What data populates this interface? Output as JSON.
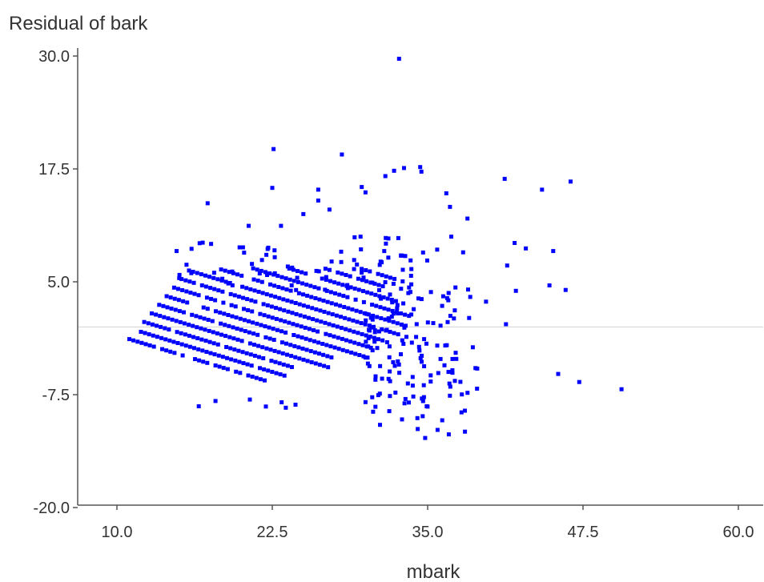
{
  "chart_data": {
    "type": "scatter",
    "title": "",
    "ylabel": "Residual of bark",
    "xlabel": "mbark",
    "xlim": [
      6.1,
      62.0
    ],
    "ylim": [
      -21.0,
      31.0
    ],
    "xticks": [
      10.0,
      22.5,
      35.0,
      47.5,
      60.0
    ],
    "yticks": [
      30.0,
      17.5,
      5.0,
      -7.5,
      -20.0
    ],
    "xtick_labels": [
      "10.0",
      "22.5",
      "35.0",
      "47.5",
      "60.0"
    ],
    "ytick_labels": [
      "30.0",
      "17.5",
      "5.0",
      "-7.5",
      "-20.0"
    ],
    "reference_line_y": 0,
    "grid": false,
    "legend": "none",
    "colors": {
      "points": "#0000ff",
      "axis": "#555555",
      "reference_line": "#d3d3d3"
    },
    "series": [
      {
        "points": [
          [
            32.7,
            29.7
          ],
          [
            22.6,
            19.7
          ],
          [
            28.1,
            19.1
          ],
          [
            33.1,
            17.6
          ],
          [
            34.4,
            17.7
          ],
          [
            34.5,
            17.2
          ],
          [
            32.3,
            17.3
          ],
          [
            31.6,
            16.7
          ],
          [
            41.2,
            16.4
          ],
          [
            46.5,
            16.1
          ],
          [
            22.5,
            15.4
          ],
          [
            29.7,
            15.5
          ],
          [
            44.2,
            15.2
          ],
          [
            26.2,
            15.2
          ],
          [
            30.0,
            14.9
          ],
          [
            36.5,
            14.8
          ],
          [
            26.2,
            14.0
          ],
          [
            17.3,
            13.7
          ],
          [
            36.8,
            13.3
          ],
          [
            27.1,
            13.0
          ],
          [
            25.0,
            12.5
          ],
          [
            38.2,
            12.0
          ],
          [
            23.2,
            11.2
          ],
          [
            20.6,
            11.2
          ],
          [
            29.6,
            10.0
          ],
          [
            36.9,
            10.0
          ],
          [
            42.0,
            9.3
          ],
          [
            14.8,
            8.4
          ],
          [
            42.9,
            8.7
          ],
          [
            45.1,
            8.4
          ],
          [
            41.4,
            6.8
          ],
          [
            44.8,
            4.6
          ],
          [
            46.1,
            4.1
          ],
          [
            42.1,
            4.0
          ],
          [
            47.2,
            -6.1
          ],
          [
            45.5,
            -5.2
          ],
          [
            50.6,
            -6.9
          ],
          [
            41.3,
            0.3
          ],
          [
            39.7,
            2.8
          ],
          [
            35.8,
            -11.4
          ],
          [
            38.0,
            -11.6
          ],
          [
            36.7,
            -11.9
          ],
          [
            34.2,
            -11.3
          ],
          [
            34.8,
            -12.3
          ]
        ]
      }
    ]
  }
}
